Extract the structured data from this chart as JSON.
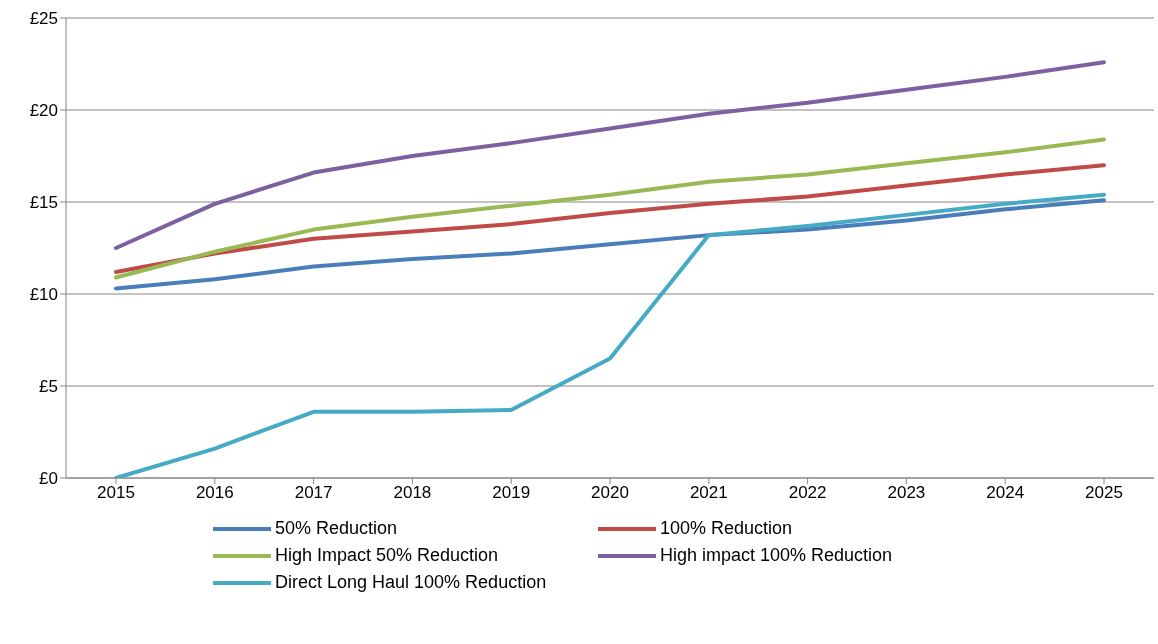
{
  "chart_data": {
    "type": "line",
    "categories": [
      "2015",
      "2016",
      "2017",
      "2018",
      "2019",
      "2020",
      "2021",
      "2022",
      "2023",
      "2024",
      "2025"
    ],
    "series": [
      {
        "name": "50% Reduction",
        "color": "#4a7ebb",
        "values": [
          10.3,
          10.8,
          11.5,
          11.9,
          12.2,
          12.7,
          13.2,
          13.5,
          14.0,
          14.6,
          15.1
        ]
      },
      {
        "name": "100% Reduction",
        "color": "#be4b48",
        "values": [
          11.2,
          12.2,
          13.0,
          13.4,
          13.8,
          14.4,
          14.9,
          15.3,
          15.9,
          16.5,
          17.0
        ]
      },
      {
        "name": "High Impact 50% Reduction",
        "color": "#98b954",
        "values": [
          10.9,
          12.3,
          13.5,
          14.2,
          14.8,
          15.4,
          16.1,
          16.5,
          17.1,
          17.7,
          18.4
        ]
      },
      {
        "name": "High impact 100% Reduction",
        "color": "#7d60a0",
        "values": [
          12.5,
          14.9,
          16.6,
          17.5,
          18.2,
          19.0,
          19.8,
          20.4,
          21.1,
          21.8,
          22.6
        ]
      },
      {
        "name": "Direct Long Haul 100% Reduction",
        "color": "#46aac5",
        "values": [
          0,
          1.6,
          3.6,
          3.6,
          3.7,
          6.5,
          13.2,
          13.7,
          14.3,
          14.9,
          15.4
        ]
      }
    ],
    "ylim": [
      0,
      25
    ],
    "yticks": [
      {
        "value": 0,
        "label": "£0"
      },
      {
        "value": 5,
        "label": "£5"
      },
      {
        "value": 10,
        "label": "£10"
      },
      {
        "value": 15,
        "label": "£15"
      },
      {
        "value": 20,
        "label": "£20"
      },
      {
        "value": 25,
        "label": "£25"
      }
    ],
    "grid": "y",
    "legend": "bottom",
    "marker": "none",
    "line_style": "solid"
  }
}
